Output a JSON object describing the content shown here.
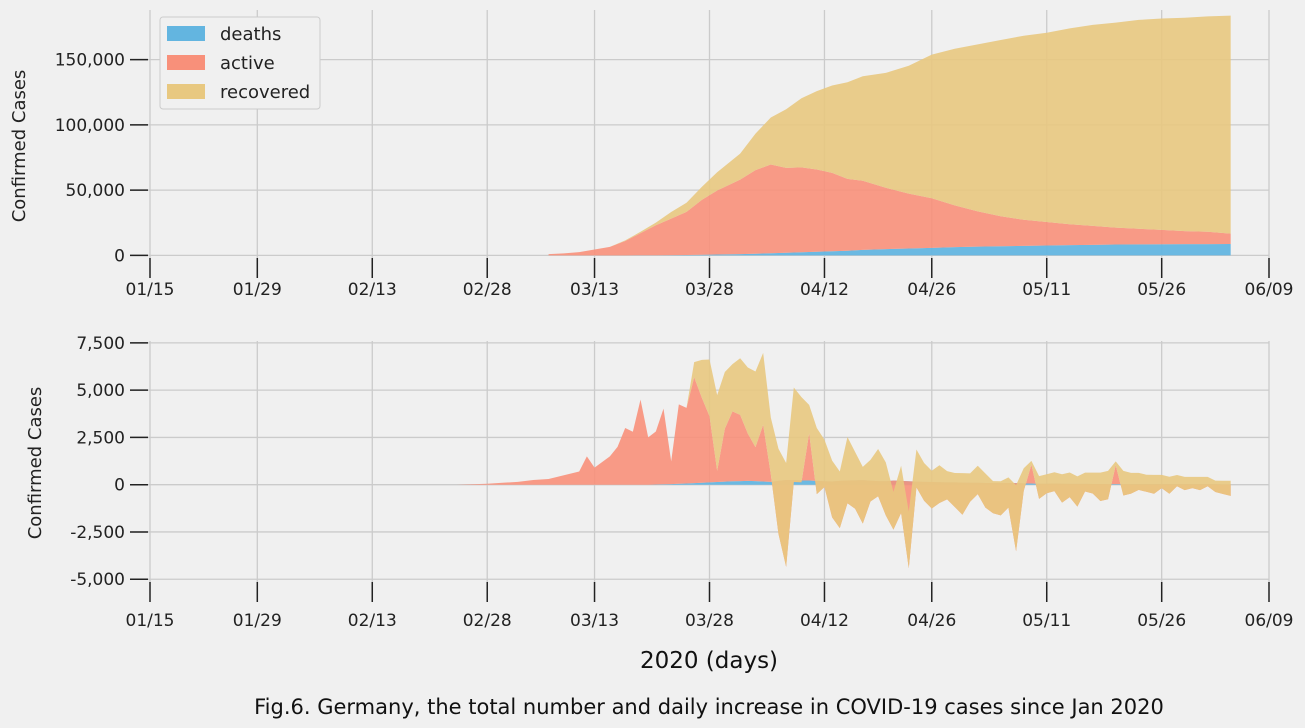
{
  "caption": "Fig.6. Germany, the total number and daily increase in COVID-19 cases since Jan 2020",
  "xlabel": "2020 (days)",
  "colors": {
    "deaths": "#63b5e0",
    "active": "#f8907a",
    "recovered": "#e8c880",
    "negative": "#eb9d4d"
  },
  "chart_data": [
    {
      "type": "area",
      "stacked": true,
      "ylabel": "Confirmed Cases",
      "ylim": [
        -2000,
        188000
      ],
      "yticks": [
        0,
        50000,
        100000,
        150000
      ],
      "ytick_labels": [
        "0",
        "50,000",
        "100,000",
        "150,000"
      ],
      "xticks": [
        "01/15",
        "01/29",
        "02/13",
        "02/28",
        "03/13",
        "03/28",
        "04/12",
        "04/26",
        "05/11",
        "05/26",
        "06/09"
      ],
      "xlim": [
        "2020-01-15",
        "2020-06-09"
      ],
      "grid": true,
      "legend_position": "top-left",
      "legend": [
        "deaths",
        "active",
        "recovered"
      ],
      "x": [
        "2020-03-07",
        "2020-03-09",
        "2020-03-11",
        "2020-03-13",
        "2020-03-15",
        "2020-03-17",
        "2020-03-19",
        "2020-03-21",
        "2020-03-23",
        "2020-03-25",
        "2020-03-27",
        "2020-03-29",
        "2020-04-01",
        "2020-04-03",
        "2020-04-05",
        "2020-04-07",
        "2020-04-09",
        "2020-04-11",
        "2020-04-13",
        "2020-04-15",
        "2020-04-17",
        "2020-04-20",
        "2020-04-23",
        "2020-04-26",
        "2020-04-29",
        "2020-05-02",
        "2020-05-05",
        "2020-05-08",
        "2020-05-11",
        "2020-05-14",
        "2020-05-17",
        "2020-05-20",
        "2020-05-23",
        "2020-05-26",
        "2020-05-29",
        "2020-06-01",
        "2020-06-04"
      ],
      "series": [
        {
          "name": "deaths",
          "values": [
            0,
            0,
            0,
            10,
            20,
            40,
            70,
            120,
            200,
            300,
            500,
            700,
            1000,
            1300,
            1600,
            2000,
            2400,
            2800,
            3200,
            3600,
            4200,
            4800,
            5300,
            5800,
            6300,
            6700,
            7000,
            7300,
            7600,
            7900,
            8100,
            8300,
            8400,
            8500,
            8600,
            8650,
            8700
          ]
        },
        {
          "name": "active",
          "values": [
            1000,
            1500,
            2500,
            4500,
            6500,
            11000,
            17000,
            23000,
            28000,
            33000,
            42000,
            49000,
            57000,
            64000,
            68000,
            65000,
            65000,
            63000,
            60000,
            55000,
            53000,
            47000,
            42000,
            38000,
            32000,
            27000,
            23000,
            20000,
            18000,
            16000,
            14500,
            13000,
            12000,
            11000,
            10000,
            9500,
            8000
          ]
        },
        {
          "name": "recovered",
          "values": [
            0,
            0,
            0,
            0,
            0,
            500,
            1000,
            2000,
            5000,
            7000,
            10000,
            14000,
            20000,
            28000,
            36000,
            45000,
            53000,
            60000,
            67000,
            74000,
            80000,
            88000,
            98000,
            110000,
            120000,
            128000,
            135000,
            141000,
            145000,
            150000,
            154000,
            157000,
            160000,
            162000,
            163500,
            165000,
            167000
          ]
        }
      ]
    },
    {
      "type": "area",
      "stacked": true,
      "ylabel": "Confirmed Cases",
      "ylim": [
        -5200,
        7600
      ],
      "yticks": [
        -5000,
        -2500,
        0,
        2500,
        5000,
        7500
      ],
      "ytick_labels": [
        "-5,000",
        "-2,500",
        "0",
        "2,500",
        "5,000",
        "7,500"
      ],
      "xticks": [
        "01/15",
        "01/29",
        "02/13",
        "02/28",
        "03/13",
        "03/28",
        "04/12",
        "04/26",
        "05/11",
        "05/26",
        "06/09"
      ],
      "xlim": [
        "2020-01-15",
        "2020-06-09"
      ],
      "grid": true,
      "x": [
        "2020-02-17",
        "2020-02-24",
        "2020-02-28",
        "2020-03-01",
        "2020-03-03",
        "2020-03-05",
        "2020-03-07",
        "2020-03-09",
        "2020-03-11",
        "2020-03-12",
        "2020-03-13",
        "2020-03-15",
        "2020-03-16",
        "2020-03-17",
        "2020-03-18",
        "2020-03-19",
        "2020-03-20",
        "2020-03-21",
        "2020-03-22",
        "2020-03-23",
        "2020-03-24",
        "2020-03-25",
        "2020-03-26",
        "2020-03-27",
        "2020-03-28",
        "2020-03-29",
        "2020-03-30",
        "2020-03-31",
        "2020-04-01",
        "2020-04-02",
        "2020-04-03",
        "2020-04-04",
        "2020-04-05",
        "2020-04-06",
        "2020-04-07",
        "2020-04-08",
        "2020-04-09",
        "2020-04-10",
        "2020-04-11",
        "2020-04-12",
        "2020-04-13",
        "2020-04-14",
        "2020-04-15",
        "2020-04-16",
        "2020-04-17",
        "2020-04-18",
        "2020-04-19",
        "2020-04-20",
        "2020-04-21",
        "2020-04-22",
        "2020-04-23",
        "2020-04-24",
        "2020-04-25",
        "2020-04-26",
        "2020-04-27",
        "2020-04-28",
        "2020-04-29",
        "2020-04-30",
        "2020-05-01",
        "2020-05-02",
        "2020-05-03",
        "2020-05-04",
        "2020-05-05",
        "2020-05-06",
        "2020-05-07",
        "2020-05-08",
        "2020-05-09",
        "2020-05-10",
        "2020-05-11",
        "2020-05-12",
        "2020-05-13",
        "2020-05-14",
        "2020-05-15",
        "2020-05-16",
        "2020-05-17",
        "2020-05-18",
        "2020-05-19",
        "2020-05-20",
        "2020-05-21",
        "2020-05-22",
        "2020-05-23",
        "2020-05-24",
        "2020-05-25",
        "2020-05-26",
        "2020-05-27",
        "2020-05-28",
        "2020-05-29",
        "2020-05-30",
        "2020-05-31",
        "2020-06-01",
        "2020-06-02",
        "2020-06-03",
        "2020-06-04"
      ],
      "series": [
        {
          "name": "deaths",
          "values": [
            0,
            0,
            0,
            0,
            0,
            0,
            0,
            0,
            0,
            0,
            0,
            0,
            0,
            0,
            0,
            0,
            0,
            10,
            20,
            30,
            50,
            60,
            80,
            100,
            120,
            140,
            160,
            180,
            190,
            200,
            190,
            170,
            150,
            200,
            250,
            240,
            230,
            220,
            200,
            180,
            170,
            200,
            220,
            230,
            240,
            210,
            190,
            180,
            220,
            200,
            180,
            160,
            150,
            140,
            130,
            120,
            120,
            110,
            100,
            100,
            90,
            90,
            80,
            90,
            80,
            70,
            60,
            50,
            50,
            60,
            50,
            45,
            40,
            40,
            35,
            35,
            30,
            30,
            30,
            25,
            25,
            25,
            20,
            20,
            20,
            15,
            15,
            15,
            15,
            15,
            15,
            10,
            10
          ]
        },
        {
          "name": "active",
          "values": [
            0,
            0,
            50,
            100,
            150,
            250,
            300,
            500,
            700,
            1500,
            900,
            1500,
            2000,
            3000,
            2800,
            4500,
            2500,
            2800,
            4000,
            1200,
            4200,
            4000,
            5600,
            4500,
            3500,
            600,
            2800,
            3700,
            3500,
            2500,
            1800,
            3000,
            400,
            -2800,
            -4600,
            -100,
            -100,
            2500,
            -700,
            -300,
            -1900,
            -2500,
            -1200,
            -1500,
            -2300,
            -1100,
            -800,
            -1800,
            -2600,
            -1700,
            -4600,
            -300,
            -1000,
            -1400,
            -1100,
            -900,
            -1300,
            -1700,
            -1000,
            -600,
            -1300,
            -1600,
            -1700,
            -1300,
            -3600,
            -400,
            1000,
            -800,
            -500,
            -400,
            -1000,
            -700,
            -1200,
            -400,
            -500,
            -900,
            -800,
            1000,
            -600,
            -500,
            -300,
            -400,
            -500,
            -200,
            -500,
            -100,
            -300,
            -200,
            -300,
            -100,
            -400,
            -500,
            -600
          ]
        },
        {
          "name": "recovered",
          "values": [
            0,
            0,
            0,
            0,
            0,
            0,
            0,
            0,
            0,
            0,
            0,
            0,
            0,
            0,
            0,
            0,
            0,
            0,
            0,
            0,
            0,
            0,
            800,
            2000,
            3000,
            4000,
            3000,
            2500,
            3000,
            3500,
            4000,
            3800,
            3000,
            4500,
            5500,
            5000,
            4500,
            1500,
            3500,
            2500,
            3000,
            3000,
            3500,
            3000,
            3000,
            2200,
            2500,
            2800,
            2000,
            2500,
            3000,
            2000,
            2000,
            2000,
            2000,
            1500,
            1800,
            2200,
            1500,
            1500,
            1800,
            1700,
            1800,
            1600,
            3500,
            1200,
            200,
            1200,
            1000,
            1000,
            1500,
            1300,
            1600,
            1000,
            1100,
            1500,
            1500,
            200,
            1300,
            1100,
            900,
            900,
            1000,
            700,
            900,
            600,
            700,
            600,
            700,
            500,
            600,
            700,
            800
          ]
        }
      ]
    }
  ]
}
